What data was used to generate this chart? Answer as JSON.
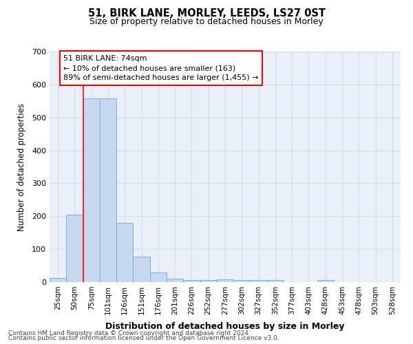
{
  "title1": "51, BIRK LANE, MORLEY, LEEDS, LS27 0ST",
  "title2": "Size of property relative to detached houses in Morley",
  "xlabel": "Distribution of detached houses by size in Morley",
  "ylabel": "Number of detached properties",
  "footer1": "Contains HM Land Registry data © Crown copyright and database right 2024.",
  "footer2": "Contains public sector information licensed under the Open Government Licence v3.0.",
  "annotation_line1": "51 BIRK LANE: 74sqm",
  "annotation_line2": "← 10% of detached houses are smaller (163)",
  "annotation_line3": "89% of semi-detached houses are larger (1,455) →",
  "bar_labels": [
    "25sqm",
    "50sqm",
    "75sqm",
    "101sqm",
    "126sqm",
    "151sqm",
    "176sqm",
    "201sqm",
    "226sqm",
    "252sqm",
    "277sqm",
    "302sqm",
    "327sqm",
    "352sqm",
    "377sqm",
    "403sqm",
    "428sqm",
    "453sqm",
    "478sqm",
    "503sqm",
    "528sqm"
  ],
  "bar_values": [
    12,
    204,
    557,
    557,
    180,
    78,
    29,
    11,
    7,
    7,
    8,
    7,
    6,
    6,
    0,
    0,
    6,
    0,
    0,
    0,
    0
  ],
  "bar_color": "#c5d8f0",
  "bar_edge_color": "#6aaad4",
  "grid_color": "#d0dcea",
  "bg_color": "#eaf0f8",
  "ylim": [
    0,
    700
  ],
  "yticks": [
    0,
    100,
    200,
    300,
    400,
    500,
    600,
    700
  ]
}
